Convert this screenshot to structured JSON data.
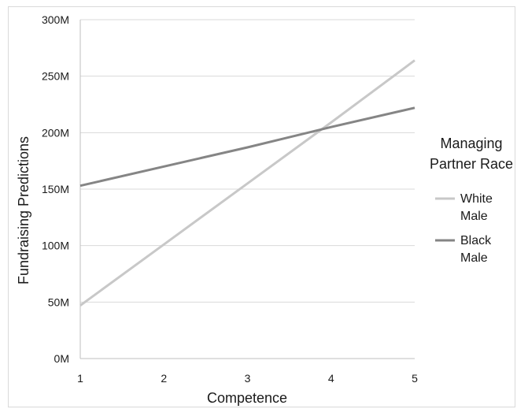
{
  "chart_data": {
    "type": "line",
    "title": "",
    "xlabel": "Competence",
    "ylabel": "Fundraising Predictions",
    "x": [
      1,
      2,
      3,
      4,
      5
    ],
    "xlim": [
      1,
      5
    ],
    "ylim": [
      0,
      300
    ],
    "y_ticks": [
      0,
      50,
      100,
      150,
      200,
      250,
      300
    ],
    "y_tick_labels": [
      "0M",
      "50M",
      "100M",
      "150M",
      "200M",
      "250M",
      "300M"
    ],
    "x_tick_labels": [
      "1",
      "2",
      "3",
      "4",
      "5"
    ],
    "grid": "horizontal",
    "legend": {
      "title_lines": [
        "Managing",
        "Partner Race"
      ],
      "placement": "right"
    },
    "series": [
      {
        "name_lines": [
          "White",
          "Male"
        ],
        "color": "#c8c8c8",
        "values": [
          47,
          101,
          155,
          209,
          264
        ]
      },
      {
        "name_lines": [
          "Black",
          "Male"
        ],
        "color": "#858585",
        "values": [
          153,
          170,
          187,
          205,
          222
        ]
      }
    ]
  }
}
